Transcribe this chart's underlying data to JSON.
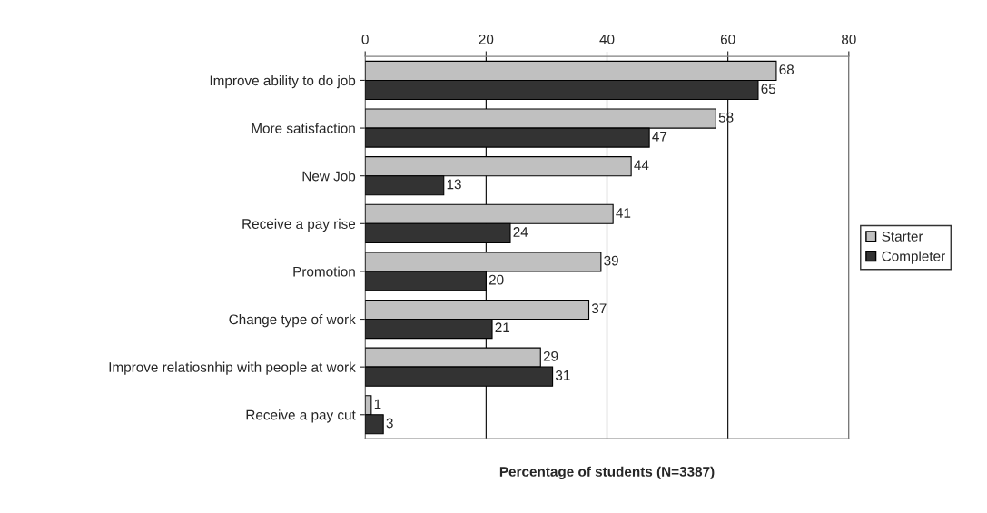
{
  "chart_data": {
    "type": "bar",
    "orientation": "horizontal",
    "xlabel": "Percentage of students (N=3387)",
    "categories": [
      "Improve ability to do job",
      "More satisfaction",
      "New Job",
      "Receive a pay rise",
      "Promotion",
      "Change type of work",
      "Improve relatiosnhip with people at work",
      "Receive a pay cut"
    ],
    "series": [
      {
        "name": "Starter",
        "color": "#c0c0c0",
        "values": [
          68,
          58,
          44,
          41,
          39,
          37,
          29,
          1
        ]
      },
      {
        "name": "Completer",
        "color": "#333333",
        "values": [
          65,
          47,
          13,
          24,
          20,
          21,
          31,
          3
        ]
      }
    ],
    "xlim": [
      0,
      80
    ],
    "xticks": [
      0,
      20,
      40,
      60,
      80
    ],
    "grid": "x",
    "legend": "right",
    "data_labels": true
  }
}
